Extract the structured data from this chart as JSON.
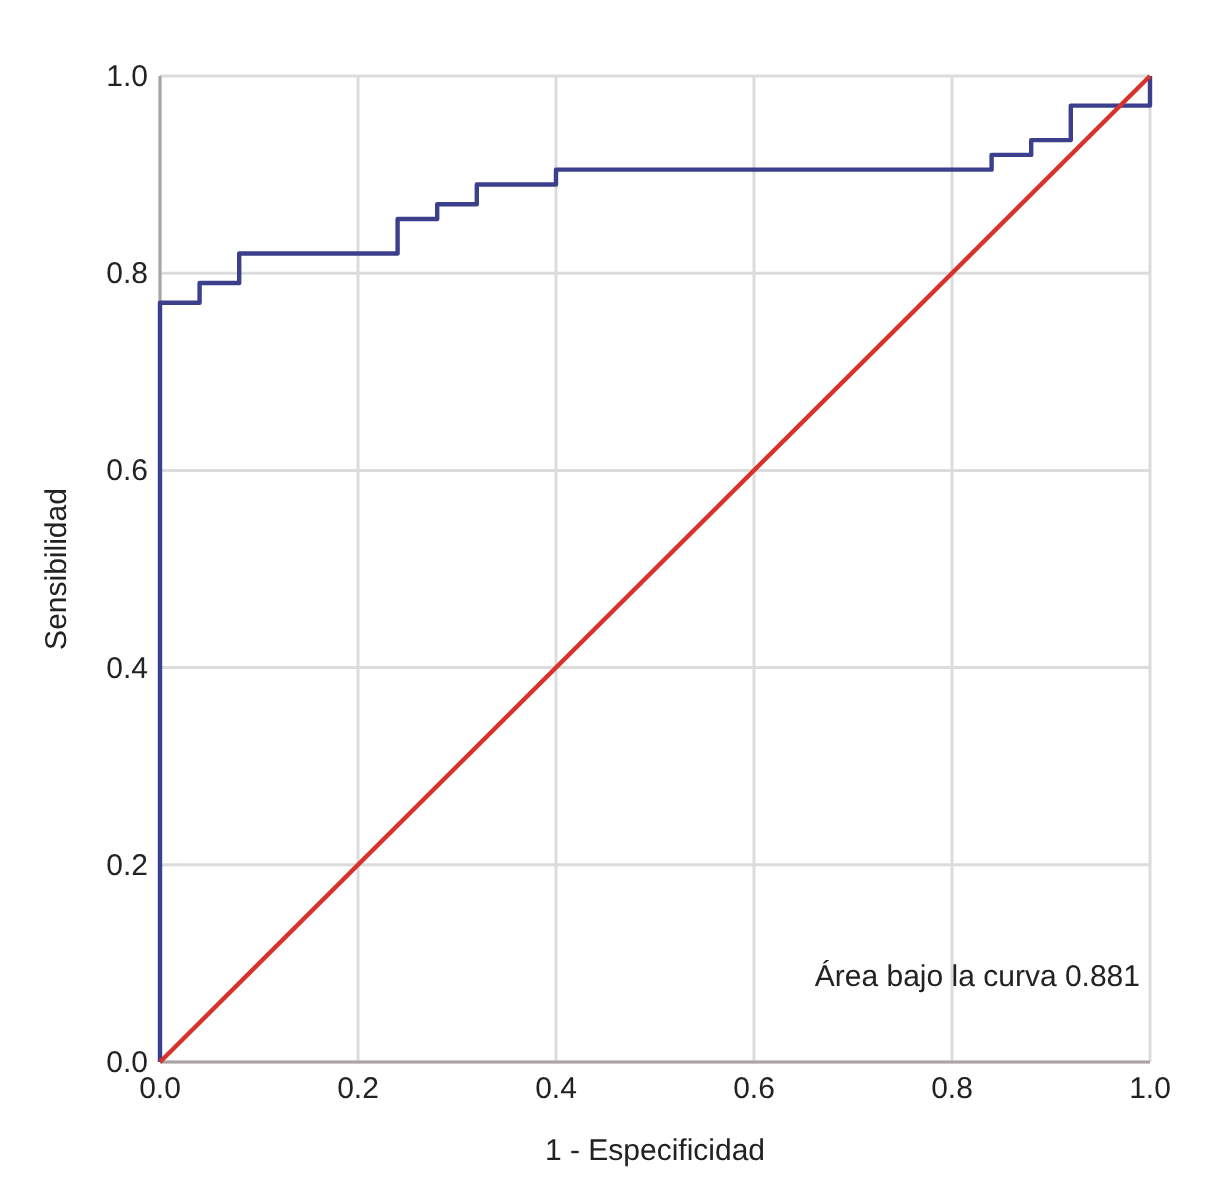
{
  "chart_data": {
    "type": "line",
    "xlabel": "1 - Especificidad",
    "ylabel": "Sensibilidad",
    "xlim": [
      0,
      1
    ],
    "ylim": [
      0,
      1
    ],
    "xticks": [
      {
        "value": 0,
        "label": "0.0"
      },
      {
        "value": 0.2,
        "label": "0.2"
      },
      {
        "value": 0.4,
        "label": "0.4"
      },
      {
        "value": 0.6,
        "label": "0.6"
      },
      {
        "value": 0.8,
        "label": "0.8"
      },
      {
        "value": 1,
        "label": "1.0"
      }
    ],
    "yticks": [
      {
        "value": 0,
        "label": "0.0"
      },
      {
        "value": 0.2,
        "label": "0.2"
      },
      {
        "value": 0.4,
        "label": "0.4"
      },
      {
        "value": 0.6,
        "label": "0.6"
      },
      {
        "value": 0.8,
        "label": "0.8"
      },
      {
        "value": 1,
        "label": "1.0"
      }
    ],
    "grid": true,
    "series": [
      {
        "color": "#3b3f8c",
        "x": [
          0,
          0,
          0.04,
          0.04,
          0.08,
          0.08,
          0.24,
          0.24,
          0.28,
          0.28,
          0.32,
          0.32,
          0.4,
          0.4,
          0.84,
          0.84,
          0.88,
          0.88,
          0.92,
          0.92,
          1,
          1
        ],
        "values": [
          0,
          0.77,
          0.77,
          0.79,
          0.79,
          0.82,
          0.82,
          0.855,
          0.855,
          0.87,
          0.87,
          0.89,
          0.89,
          0.905,
          0.905,
          0.92,
          0.92,
          0.935,
          0.935,
          0.97,
          0.97,
          1
        ]
      },
      {
        "color": "#d8322c",
        "x": [
          0,
          1
        ],
        "values": [
          0,
          1
        ]
      }
    ],
    "annotations": [
      "Área bajo la curva 0.881"
    ]
  }
}
